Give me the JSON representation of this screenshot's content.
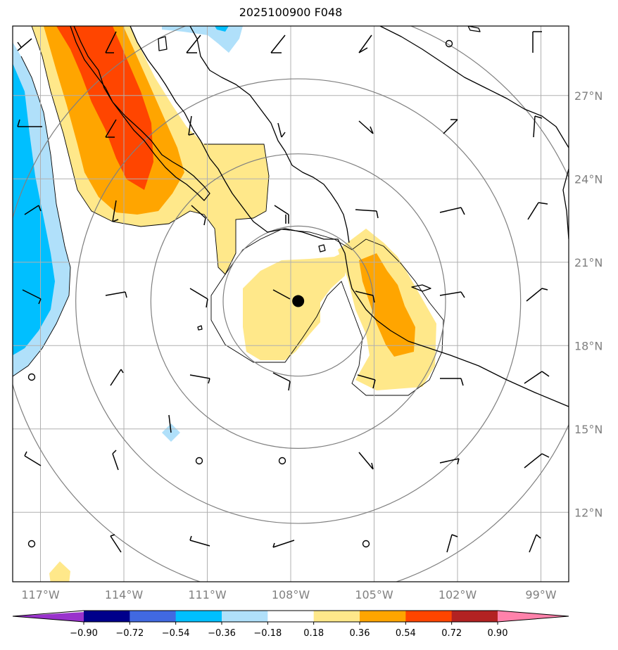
{
  "title": "2025100900 F048",
  "map": {
    "lon_range": [
      -118,
      -98
    ],
    "lat_range": [
      9.5,
      29.5
    ],
    "lon_ticks": [
      -117,
      -114,
      -111,
      -108,
      -105,
      -102,
      -99
    ],
    "lon_labels": [
      "117°W",
      "114°W",
      "111°W",
      "108°W",
      "105°W",
      "102°W",
      "99°W"
    ],
    "lat_ticks": [
      12,
      15,
      18,
      21,
      24,
      27
    ],
    "lat_labels": [
      "12°N",
      "15°N",
      "18°N",
      "21°N",
      "24°N",
      "27°N"
    ],
    "storm_center": {
      "lon": -107.73,
      "lat": 19.6
    },
    "range_rings_deg": [
      2.7,
      5.3,
      8.0,
      10.7
    ]
  },
  "colorbar": {
    "levels": [
      -0.9,
      -0.72,
      -0.54,
      -0.36,
      -0.18,
      0.18,
      0.36,
      0.54,
      0.72,
      0.9
    ],
    "labels": [
      "−0.90",
      "−0.72",
      "−0.54",
      "−0.36",
      "−0.18",
      "0.18",
      "0.36",
      "0.54",
      "0.72",
      "0.90"
    ],
    "colors": [
      "#9932cc",
      "#00008b",
      "#4169e1",
      "#00bfff",
      "#b0e0fa",
      "#ffffff",
      "#ffe88a",
      "#ffa500",
      "#ff4500",
      "#b22222",
      "#ff82ab"
    ]
  },
  "colors": {
    "grid": "#b0b0b0",
    "rings": "#808080",
    "coast": "#000000"
  }
}
